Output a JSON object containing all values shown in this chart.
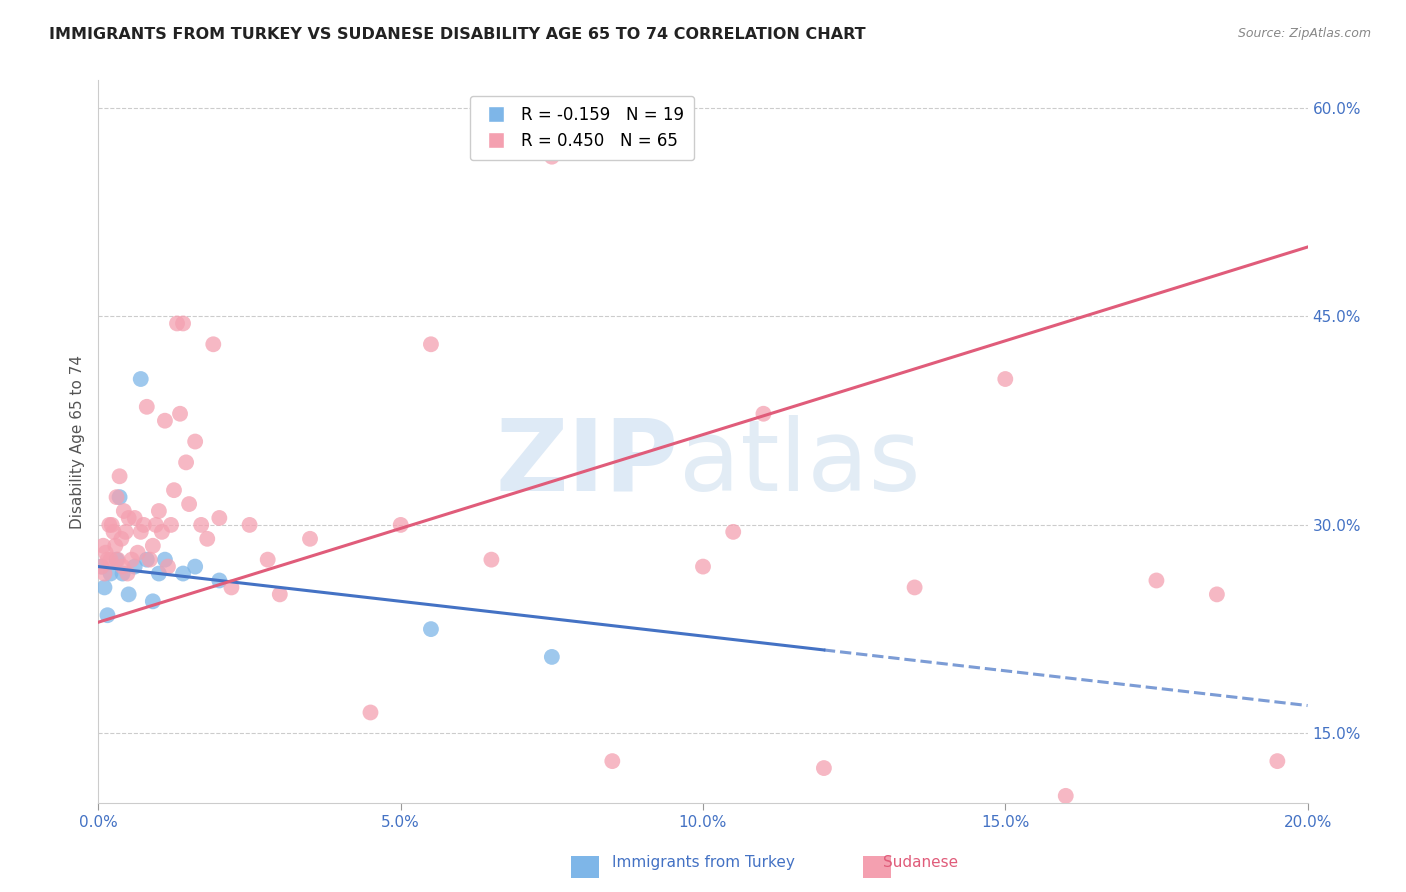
{
  "title": "IMMIGRANTS FROM TURKEY VS SUDANESE DISABILITY AGE 65 TO 74 CORRELATION CHART",
  "source": "Source: ZipAtlas.com",
  "ylabel": "Disability Age 65 to 74",
  "xlim": [
    0.0,
    20.0
  ],
  "ylim": [
    10.0,
    62.0
  ],
  "yticks_right": [
    15.0,
    30.0,
    45.0,
    60.0
  ],
  "xticks": [
    0.0,
    5.0,
    10.0,
    15.0,
    20.0
  ],
  "grid_color": "#cccccc",
  "background_color": "#ffffff",
  "turkey_color": "#7EB6E8",
  "sudanese_color": "#F4A0B0",
  "turkey_line_color": "#4472C4",
  "sudanese_line_color": "#E05C7A",
  "turkey_R": -0.159,
  "turkey_N": 19,
  "sudanese_R": 0.45,
  "sudanese_N": 65,
  "turkey_line_x0": 0.0,
  "turkey_line_y0": 27.0,
  "turkey_line_x1": 12.0,
  "turkey_line_y1": 21.0,
  "turkey_dash_x0": 12.0,
  "turkey_dash_y0": 21.0,
  "turkey_dash_x1": 20.0,
  "turkey_dash_y1": 17.0,
  "sudanese_line_x0": 0.0,
  "sudanese_line_y0": 23.0,
  "sudanese_line_x1": 20.0,
  "sudanese_line_y1": 50.0,
  "turkey_scatter_x": [
    0.05,
    0.1,
    0.15,
    0.2,
    0.3,
    0.35,
    0.4,
    0.5,
    0.6,
    0.7,
    0.8,
    0.9,
    1.0,
    1.1,
    1.4,
    1.6,
    2.0,
    5.5,
    7.5
  ],
  "turkey_scatter_y": [
    27.0,
    25.5,
    23.5,
    26.5,
    27.5,
    32.0,
    26.5,
    25.0,
    27.0,
    40.5,
    27.5,
    24.5,
    26.5,
    27.5,
    26.5,
    27.0,
    26.0,
    22.5,
    20.5
  ],
  "sudanese_scatter_x": [
    0.05,
    0.08,
    0.1,
    0.12,
    0.15,
    0.18,
    0.2,
    0.22,
    0.25,
    0.28,
    0.3,
    0.32,
    0.35,
    0.38,
    0.4,
    0.42,
    0.45,
    0.48,
    0.5,
    0.55,
    0.6,
    0.65,
    0.7,
    0.75,
    0.8,
    0.85,
    0.9,
    0.95,
    1.0,
    1.05,
    1.1,
    1.15,
    1.2,
    1.25,
    1.3,
    1.35,
    1.4,
    1.45,
    1.5,
    1.6,
    1.7,
    1.8,
    1.9,
    2.0,
    2.2,
    2.5,
    2.8,
    3.0,
    3.5,
    4.5,
    5.0,
    5.5,
    6.5,
    7.5,
    8.5,
    10.0,
    10.5,
    11.0,
    12.0,
    13.5,
    15.0,
    16.0,
    17.5,
    18.5,
    19.5
  ],
  "sudanese_scatter_y": [
    27.0,
    28.5,
    26.5,
    28.0,
    27.5,
    30.0,
    27.5,
    30.0,
    29.5,
    28.5,
    32.0,
    27.5,
    33.5,
    29.0,
    27.0,
    31.0,
    29.5,
    26.5,
    30.5,
    27.5,
    30.5,
    28.0,
    29.5,
    30.0,
    38.5,
    27.5,
    28.5,
    30.0,
    31.0,
    29.5,
    37.5,
    27.0,
    30.0,
    32.5,
    44.5,
    38.0,
    44.5,
    34.5,
    31.5,
    36.0,
    30.0,
    29.0,
    43.0,
    30.5,
    25.5,
    30.0,
    27.5,
    25.0,
    29.0,
    16.5,
    30.0,
    43.0,
    27.5,
    56.5,
    13.0,
    27.0,
    29.5,
    38.0,
    12.5,
    25.5,
    40.5,
    10.5,
    26.0,
    25.0,
    13.0
  ]
}
